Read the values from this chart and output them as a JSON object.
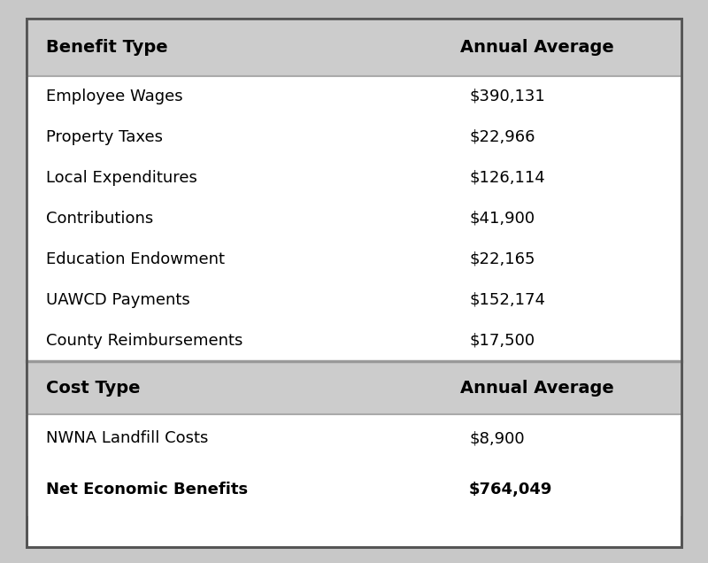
{
  "benefit_header": [
    "Benefit Type",
    "Annual Average"
  ],
  "benefit_rows": [
    [
      "Employee Wages",
      "$390,131"
    ],
    [
      "Property Taxes",
      "$22,966"
    ],
    [
      "Local Expenditures",
      "$126,114"
    ],
    [
      "Contributions",
      "$41,900"
    ],
    [
      "Education Endowment",
      "$22,165"
    ],
    [
      "UAWCD Payments",
      "$152,174"
    ],
    [
      "County Reimbursements",
      "$17,500"
    ]
  ],
  "cost_header": [
    "Cost Type",
    "Annual Average"
  ],
  "cost_rows": [
    [
      "NWNA Landfill Costs",
      "$8,900"
    ]
  ],
  "net_row": [
    "Net Economic Benefits",
    "$764,049"
  ],
  "header_bg": "#cccccc",
  "white_bg": "#ffffff",
  "outer_bg": "#c8c8c8",
  "separator_color": "#aaaaaa",
  "border_color": "#555555",
  "text_color": "#000000",
  "header_fontsize": 14,
  "body_fontsize": 13,
  "fig_width": 8.0,
  "fig_height": 6.36
}
